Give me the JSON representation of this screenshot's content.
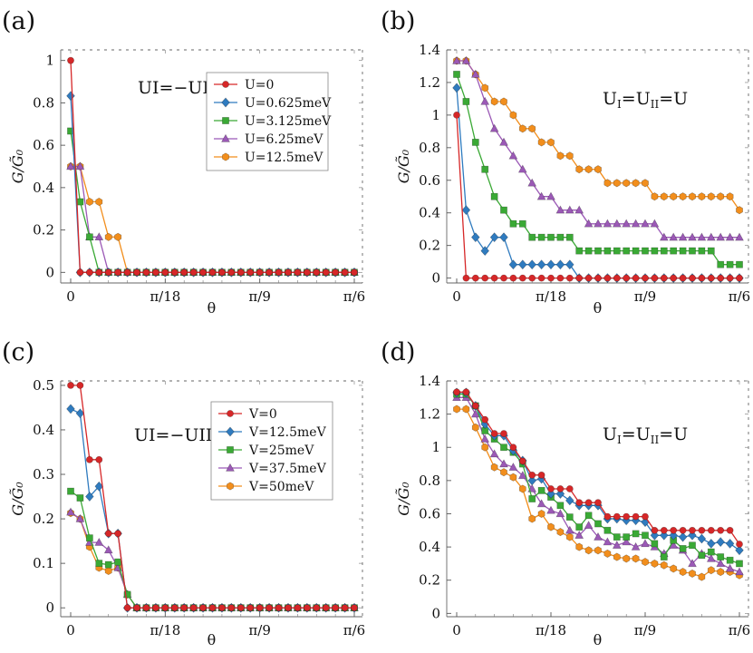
{
  "figure": {
    "x_tick_labels": [
      "0",
      "π/18",
      "π/9",
      "π/6"
    ],
    "x_axis_label": "θ",
    "y_axis_label": "G/G̃₀"
  },
  "colors": {
    "red": "#d62728",
    "blue": "#2f7bbf",
    "green": "#3aa935",
    "purple": "#9b59b6",
    "orange": "#f28e1c"
  },
  "chart_data": [
    {
      "panel": "(a)",
      "type": "line",
      "annotation": "UI=−UII=U",
      "x": [
        0,
        1,
        2,
        3,
        4,
        5,
        6,
        7,
        8,
        9,
        10,
        11,
        12,
        13,
        14,
        15,
        16,
        17,
        18,
        19,
        20,
        21,
        22,
        23,
        24,
        25,
        26,
        27,
        28,
        29,
        30
      ],
      "x_ticks": [
        0,
        10,
        20,
        30
      ],
      "ylim": [
        -0.05,
        1.05
      ],
      "y_ticks": [
        0,
        0.2,
        0.4,
        0.6,
        0.8,
        1
      ],
      "y_tick_labels": [
        "0",
        "0.2",
        "0.4",
        "0.6",
        "0.8",
        "1"
      ],
      "legend_position": "top-center",
      "series": [
        {
          "name": "U=12.5meV",
          "color": "orange",
          "marker": "hexagon",
          "values": [
            0.5,
            0.5,
            0.333,
            0.333,
            0.167,
            0.167,
            0,
            0,
            0,
            0,
            0,
            0,
            0,
            0,
            0,
            0,
            0,
            0,
            0,
            0,
            0,
            0,
            0,
            0,
            0,
            0,
            0,
            0,
            0,
            0,
            0
          ]
        },
        {
          "name": "U=6.25meV",
          "color": "purple",
          "marker": "triangle",
          "values": [
            0.5,
            0.5,
            0.167,
            0.167,
            0,
            0,
            0,
            0,
            0,
            0,
            0,
            0,
            0,
            0,
            0,
            0,
            0,
            0,
            0,
            0,
            0,
            0,
            0,
            0,
            0,
            0,
            0,
            0,
            0,
            0,
            0
          ]
        },
        {
          "name": "U=3.125meV",
          "color": "green",
          "marker": "square",
          "values": [
            0.667,
            0.333,
            0.167,
            0,
            0,
            0,
            0,
            0,
            0,
            0,
            0,
            0,
            0,
            0,
            0,
            0,
            0,
            0,
            0,
            0,
            0,
            0,
            0,
            0,
            0,
            0,
            0,
            0,
            0,
            0,
            0
          ]
        },
        {
          "name": "U=0.625meV",
          "color": "blue",
          "marker": "diamond",
          "values": [
            0.833,
            0,
            0,
            0,
            0,
            0,
            0,
            0,
            0,
            0,
            0,
            0,
            0,
            0,
            0,
            0,
            0,
            0,
            0,
            0,
            0,
            0,
            0,
            0,
            0,
            0,
            0,
            0,
            0,
            0,
            0
          ]
        },
        {
          "name": "U=0",
          "color": "red",
          "marker": "circle",
          "values": [
            1,
            0,
            0,
            0,
            0,
            0,
            0,
            0,
            0,
            0,
            0,
            0,
            0,
            0,
            0,
            0,
            0,
            0,
            0,
            0,
            0,
            0,
            0,
            0,
            0,
            0,
            0,
            0,
            0,
            0,
            0
          ]
        }
      ]
    },
    {
      "panel": "(b)",
      "type": "line",
      "annotation": "UI=UII=U",
      "x": [
        0,
        1,
        2,
        3,
        4,
        5,
        6,
        7,
        8,
        9,
        10,
        11,
        12,
        13,
        14,
        15,
        16,
        17,
        18,
        19,
        20,
        21,
        22,
        23,
        24,
        25,
        26,
        27,
        28,
        29,
        30
      ],
      "x_ticks": [
        0,
        10,
        20,
        30
      ],
      "ylim": [
        -0.03,
        1.4
      ],
      "y_ticks": [
        0,
        0.2,
        0.4,
        0.6,
        0.8,
        1,
        1.2,
        1.4
      ],
      "y_tick_labels": [
        "0",
        "0.2",
        "0.4",
        "0.6",
        "0.8",
        "1",
        "1.2",
        "1.4"
      ],
      "legend_position": "none",
      "series": [
        {
          "name": "U=12.5meV",
          "color": "orange",
          "marker": "hexagon",
          "values": [
            1.333,
            1.333,
            1.25,
            1.167,
            1.083,
            1.083,
            1,
            0.917,
            0.917,
            0.833,
            0.833,
            0.75,
            0.75,
            0.667,
            0.667,
            0.667,
            0.583,
            0.583,
            0.583,
            0.583,
            0.583,
            0.5,
            0.5,
            0.5,
            0.5,
            0.5,
            0.5,
            0.5,
            0.5,
            0.5,
            0.417
          ]
        },
        {
          "name": "U=6.25meV",
          "color": "purple",
          "marker": "triangle",
          "values": [
            1.333,
            1.333,
            1.25,
            1.083,
            0.917,
            0.833,
            0.75,
            0.667,
            0.583,
            0.5,
            0.5,
            0.417,
            0.417,
            0.417,
            0.333,
            0.333,
            0.333,
            0.333,
            0.333,
            0.333,
            0.333,
            0.333,
            0.25,
            0.25,
            0.25,
            0.25,
            0.25,
            0.25,
            0.25,
            0.25,
            0.25
          ]
        },
        {
          "name": "U=3.125meV",
          "color": "green",
          "marker": "square",
          "values": [
            1.25,
            1.083,
            0.833,
            0.667,
            0.5,
            0.417,
            0.333,
            0.333,
            0.25,
            0.25,
            0.25,
            0.25,
            0.25,
            0.167,
            0.167,
            0.167,
            0.167,
            0.167,
            0.167,
            0.167,
            0.167,
            0.167,
            0.167,
            0.167,
            0.167,
            0.167,
            0.167,
            0.167,
            0.083,
            0.083,
            0.083
          ]
        },
        {
          "name": "U=0.625meV",
          "color": "blue",
          "marker": "diamond",
          "values": [
            1.167,
            0.417,
            0.25,
            0.167,
            0.25,
            0.25,
            0.083,
            0.083,
            0.083,
            0.083,
            0.083,
            0.083,
            0.083,
            0,
            0,
            0,
            0,
            0,
            0,
            0,
            0,
            0,
            0,
            0,
            0,
            0,
            0,
            0,
            0,
            0,
            0
          ]
        },
        {
          "name": "U=0",
          "color": "red",
          "marker": "circle",
          "values": [
            1,
            0,
            0,
            0,
            0,
            0,
            0,
            0,
            0,
            0,
            0,
            0,
            0,
            0,
            0,
            0,
            0,
            0,
            0,
            0,
            0,
            0,
            0,
            0,
            0,
            0,
            0,
            0,
            0,
            0,
            0
          ]
        }
      ]
    },
    {
      "panel": "(c)",
      "type": "line",
      "annotation": "UI=−UII=U",
      "x": [
        0,
        1,
        2,
        3,
        4,
        5,
        6,
        7,
        8,
        9,
        10,
        11,
        12,
        13,
        14,
        15,
        16,
        17,
        18,
        19,
        20,
        21,
        22,
        23,
        24,
        25,
        26,
        27,
        28,
        29,
        30
      ],
      "x_ticks": [
        0,
        10,
        20,
        30
      ],
      "ylim": [
        -0.02,
        0.51
      ],
      "y_ticks": [
        0,
        0.1,
        0.2,
        0.3,
        0.4,
        0.5
      ],
      "y_tick_labels": [
        "0",
        "0.1",
        "0.2",
        "0.3",
        "0.4",
        "0.5"
      ],
      "legend_position": "top-center",
      "series": [
        {
          "name": "V=50meV",
          "color": "orange",
          "marker": "hexagon",
          "values": [
            0.213,
            0.2,
            0.137,
            0.09,
            0.083,
            0.09,
            0.03,
            0,
            0,
            0,
            0,
            0,
            0,
            0,
            0,
            0,
            0,
            0,
            0,
            0,
            0,
            0,
            0,
            0,
            0,
            0,
            0,
            0,
            0,
            0,
            0
          ]
        },
        {
          "name": "V=37.5meV",
          "color": "purple",
          "marker": "triangle",
          "values": [
            0.215,
            0.2,
            0.147,
            0.147,
            0.13,
            0.09,
            0.03,
            0,
            0,
            0,
            0,
            0,
            0,
            0,
            0,
            0,
            0,
            0,
            0,
            0,
            0,
            0,
            0,
            0,
            0,
            0,
            0,
            0,
            0,
            0,
            0
          ]
        },
        {
          "name": "V=25meV",
          "color": "green",
          "marker": "square",
          "values": [
            0.262,
            0.247,
            0.157,
            0.1,
            0.097,
            0.103,
            0.03,
            0,
            0,
            0,
            0,
            0,
            0,
            0,
            0,
            0,
            0,
            0,
            0,
            0,
            0,
            0,
            0,
            0,
            0,
            0,
            0,
            0,
            0,
            0,
            0
          ]
        },
        {
          "name": "V=12.5meV",
          "color": "blue",
          "marker": "diamond",
          "values": [
            0.447,
            0.437,
            0.25,
            0.273,
            0.167,
            0.167,
            0,
            0,
            0,
            0,
            0,
            0,
            0,
            0,
            0,
            0,
            0,
            0,
            0,
            0,
            0,
            0,
            0,
            0,
            0,
            0,
            0,
            0,
            0,
            0,
            0
          ]
        },
        {
          "name": "V=0",
          "color": "red",
          "marker": "circle",
          "values": [
            0.5,
            0.5,
            0.333,
            0.333,
            0.167,
            0.167,
            0,
            0,
            0,
            0,
            0,
            0,
            0,
            0,
            0,
            0,
            0,
            0,
            0,
            0,
            0,
            0,
            0,
            0,
            0,
            0,
            0,
            0,
            0,
            0,
            0
          ]
        }
      ]
    },
    {
      "panel": "(d)",
      "type": "line",
      "annotation": "UI=UII=U",
      "x": [
        0,
        1,
        2,
        3,
        4,
        5,
        6,
        7,
        8,
        9,
        10,
        11,
        12,
        13,
        14,
        15,
        16,
        17,
        18,
        19,
        20,
        21,
        22,
        23,
        24,
        25,
        26,
        27,
        28,
        29,
        30
      ],
      "x_ticks": [
        0,
        10,
        20,
        30
      ],
      "ylim": [
        -0.02,
        1.4
      ],
      "y_ticks": [
        0,
        0.2,
        0.4,
        0.6,
        0.8,
        1,
        1.2,
        1.4
      ],
      "y_tick_labels": [
        "0",
        "0.2",
        "0.4",
        "0.6",
        "0.8",
        "1",
        "1.2",
        "1.4"
      ],
      "legend_position": "none",
      "series": [
        {
          "name": "V=50meV",
          "color": "orange",
          "marker": "hexagon",
          "values": [
            1.23,
            1.23,
            1.12,
            1.0,
            0.88,
            0.85,
            0.82,
            0.75,
            0.57,
            0.6,
            0.52,
            0.49,
            0.46,
            0.4,
            0.38,
            0.38,
            0.36,
            0.34,
            0.33,
            0.33,
            0.31,
            0.3,
            0.29,
            0.27,
            0.25,
            0.24,
            0.22,
            0.26,
            0.25,
            0.25,
            0.23
          ]
        },
        {
          "name": "V=37.5meV",
          "color": "purple",
          "marker": "triangle",
          "values": [
            1.3,
            1.3,
            1.2,
            1.05,
            0.96,
            0.9,
            0.88,
            0.83,
            0.75,
            0.66,
            0.62,
            0.6,
            0.5,
            0.47,
            0.53,
            0.46,
            0.43,
            0.41,
            0.43,
            0.4,
            0.42,
            0.4,
            0.36,
            0.41,
            0.38,
            0.3,
            0.36,
            0.33,
            0.3,
            0.27,
            0.25
          ]
        },
        {
          "name": "V=25meV",
          "color": "green",
          "marker": "square",
          "values": [
            1.32,
            1.32,
            1.25,
            1.1,
            1.05,
            1.0,
            0.97,
            0.9,
            0.69,
            0.74,
            0.7,
            0.65,
            0.58,
            0.52,
            0.59,
            0.54,
            0.5,
            0.46,
            0.46,
            0.48,
            0.47,
            0.42,
            0.34,
            0.44,
            0.39,
            0.41,
            0.35,
            0.37,
            0.34,
            0.32,
            0.3
          ]
        },
        {
          "name": "V=12.5meV",
          "color": "blue",
          "marker": "diamond",
          "values": [
            1.33,
            1.33,
            1.25,
            1.14,
            1.07,
            1.07,
            0.98,
            0.92,
            0.8,
            0.81,
            0.72,
            0.72,
            0.68,
            0.65,
            0.65,
            0.65,
            0.57,
            0.57,
            0.56,
            0.56,
            0.55,
            0.47,
            0.47,
            0.47,
            0.46,
            0.47,
            0.45,
            0.42,
            0.43,
            0.42,
            0.38
          ]
        },
        {
          "name": "V=0",
          "color": "red",
          "marker": "circle",
          "values": [
            1.333,
            1.333,
            1.25,
            1.167,
            1.083,
            1.083,
            1,
            0.917,
            0.833,
            0.833,
            0.75,
            0.75,
            0.75,
            0.667,
            0.667,
            0.667,
            0.583,
            0.583,
            0.583,
            0.583,
            0.583,
            0.5,
            0.5,
            0.5,
            0.5,
            0.5,
            0.5,
            0.5,
            0.5,
            0.5,
            0.417
          ]
        }
      ]
    }
  ]
}
